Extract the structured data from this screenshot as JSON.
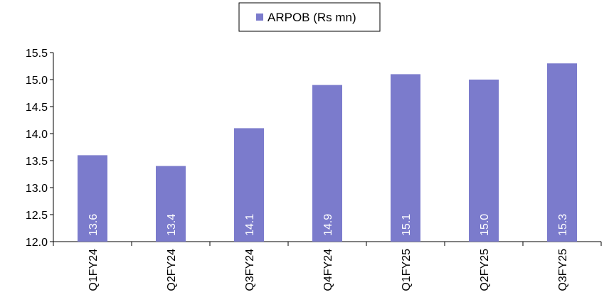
{
  "chart_data": {
    "type": "bar",
    "categories": [
      "Q1FY24",
      "Q2FY24",
      "Q3FY24",
      "Q4FY24",
      "Q1FY25",
      "Q2FY25",
      "Q3FY25"
    ],
    "series": [
      {
        "name": "ARPOB (Rs mn)",
        "values": [
          13.6,
          13.4,
          14.1,
          14.9,
          15.1,
          15.0,
          15.3
        ]
      }
    ],
    "data_labels": [
      "13.6",
      "13.4",
      "14.1",
      "14.9",
      "15.1",
      "15.0",
      "15.3"
    ],
    "y_ticks": [
      "12.0",
      "12.5",
      "13.0",
      "13.5",
      "14.0",
      "14.5",
      "15.0",
      "15.5"
    ],
    "ylim": [
      12.0,
      15.5
    ],
    "grid": false,
    "legend_position": "top-center",
    "bar_color": "#7b7bcc",
    "label_color": "#ffffff"
  }
}
